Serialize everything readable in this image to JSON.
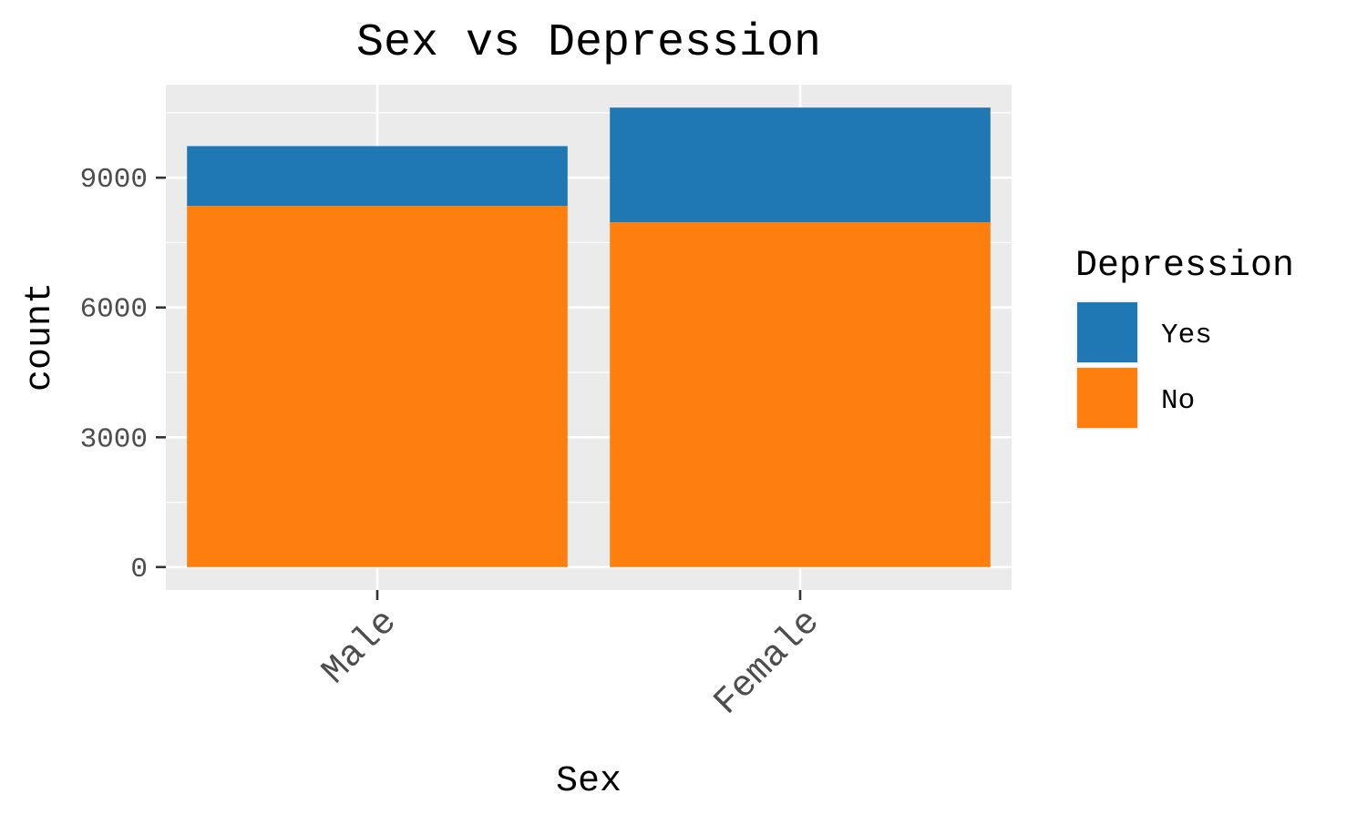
{
  "chart_data": {
    "type": "bar",
    "stacked": true,
    "title": "Sex vs Depression",
    "xlabel": "Sex",
    "ylabel": "count",
    "categories": [
      "Male",
      "Female"
    ],
    "series": [
      {
        "name": "No",
        "color": "#ff7f0e",
        "values": [
          8350,
          7970
        ]
      },
      {
        "name": "Yes",
        "color": "#1f77b4",
        "values": [
          1380,
          2650
        ]
      }
    ],
    "yticks": [
      0,
      3000,
      6000,
      9000
    ],
    "ytick_labels": [
      "0",
      "3000",
      "6000",
      "9000"
    ],
    "ylim": [
      -530,
      11150
    ],
    "grid": true,
    "panel_background": "#ebebeb",
    "grid_color": "#ffffff",
    "legend": {
      "title": "Depression",
      "position": "right",
      "entries": [
        {
          "name": "Yes",
          "color": "#1f77b4"
        },
        {
          "name": "No",
          "color": "#ff7f0e"
        }
      ]
    }
  }
}
